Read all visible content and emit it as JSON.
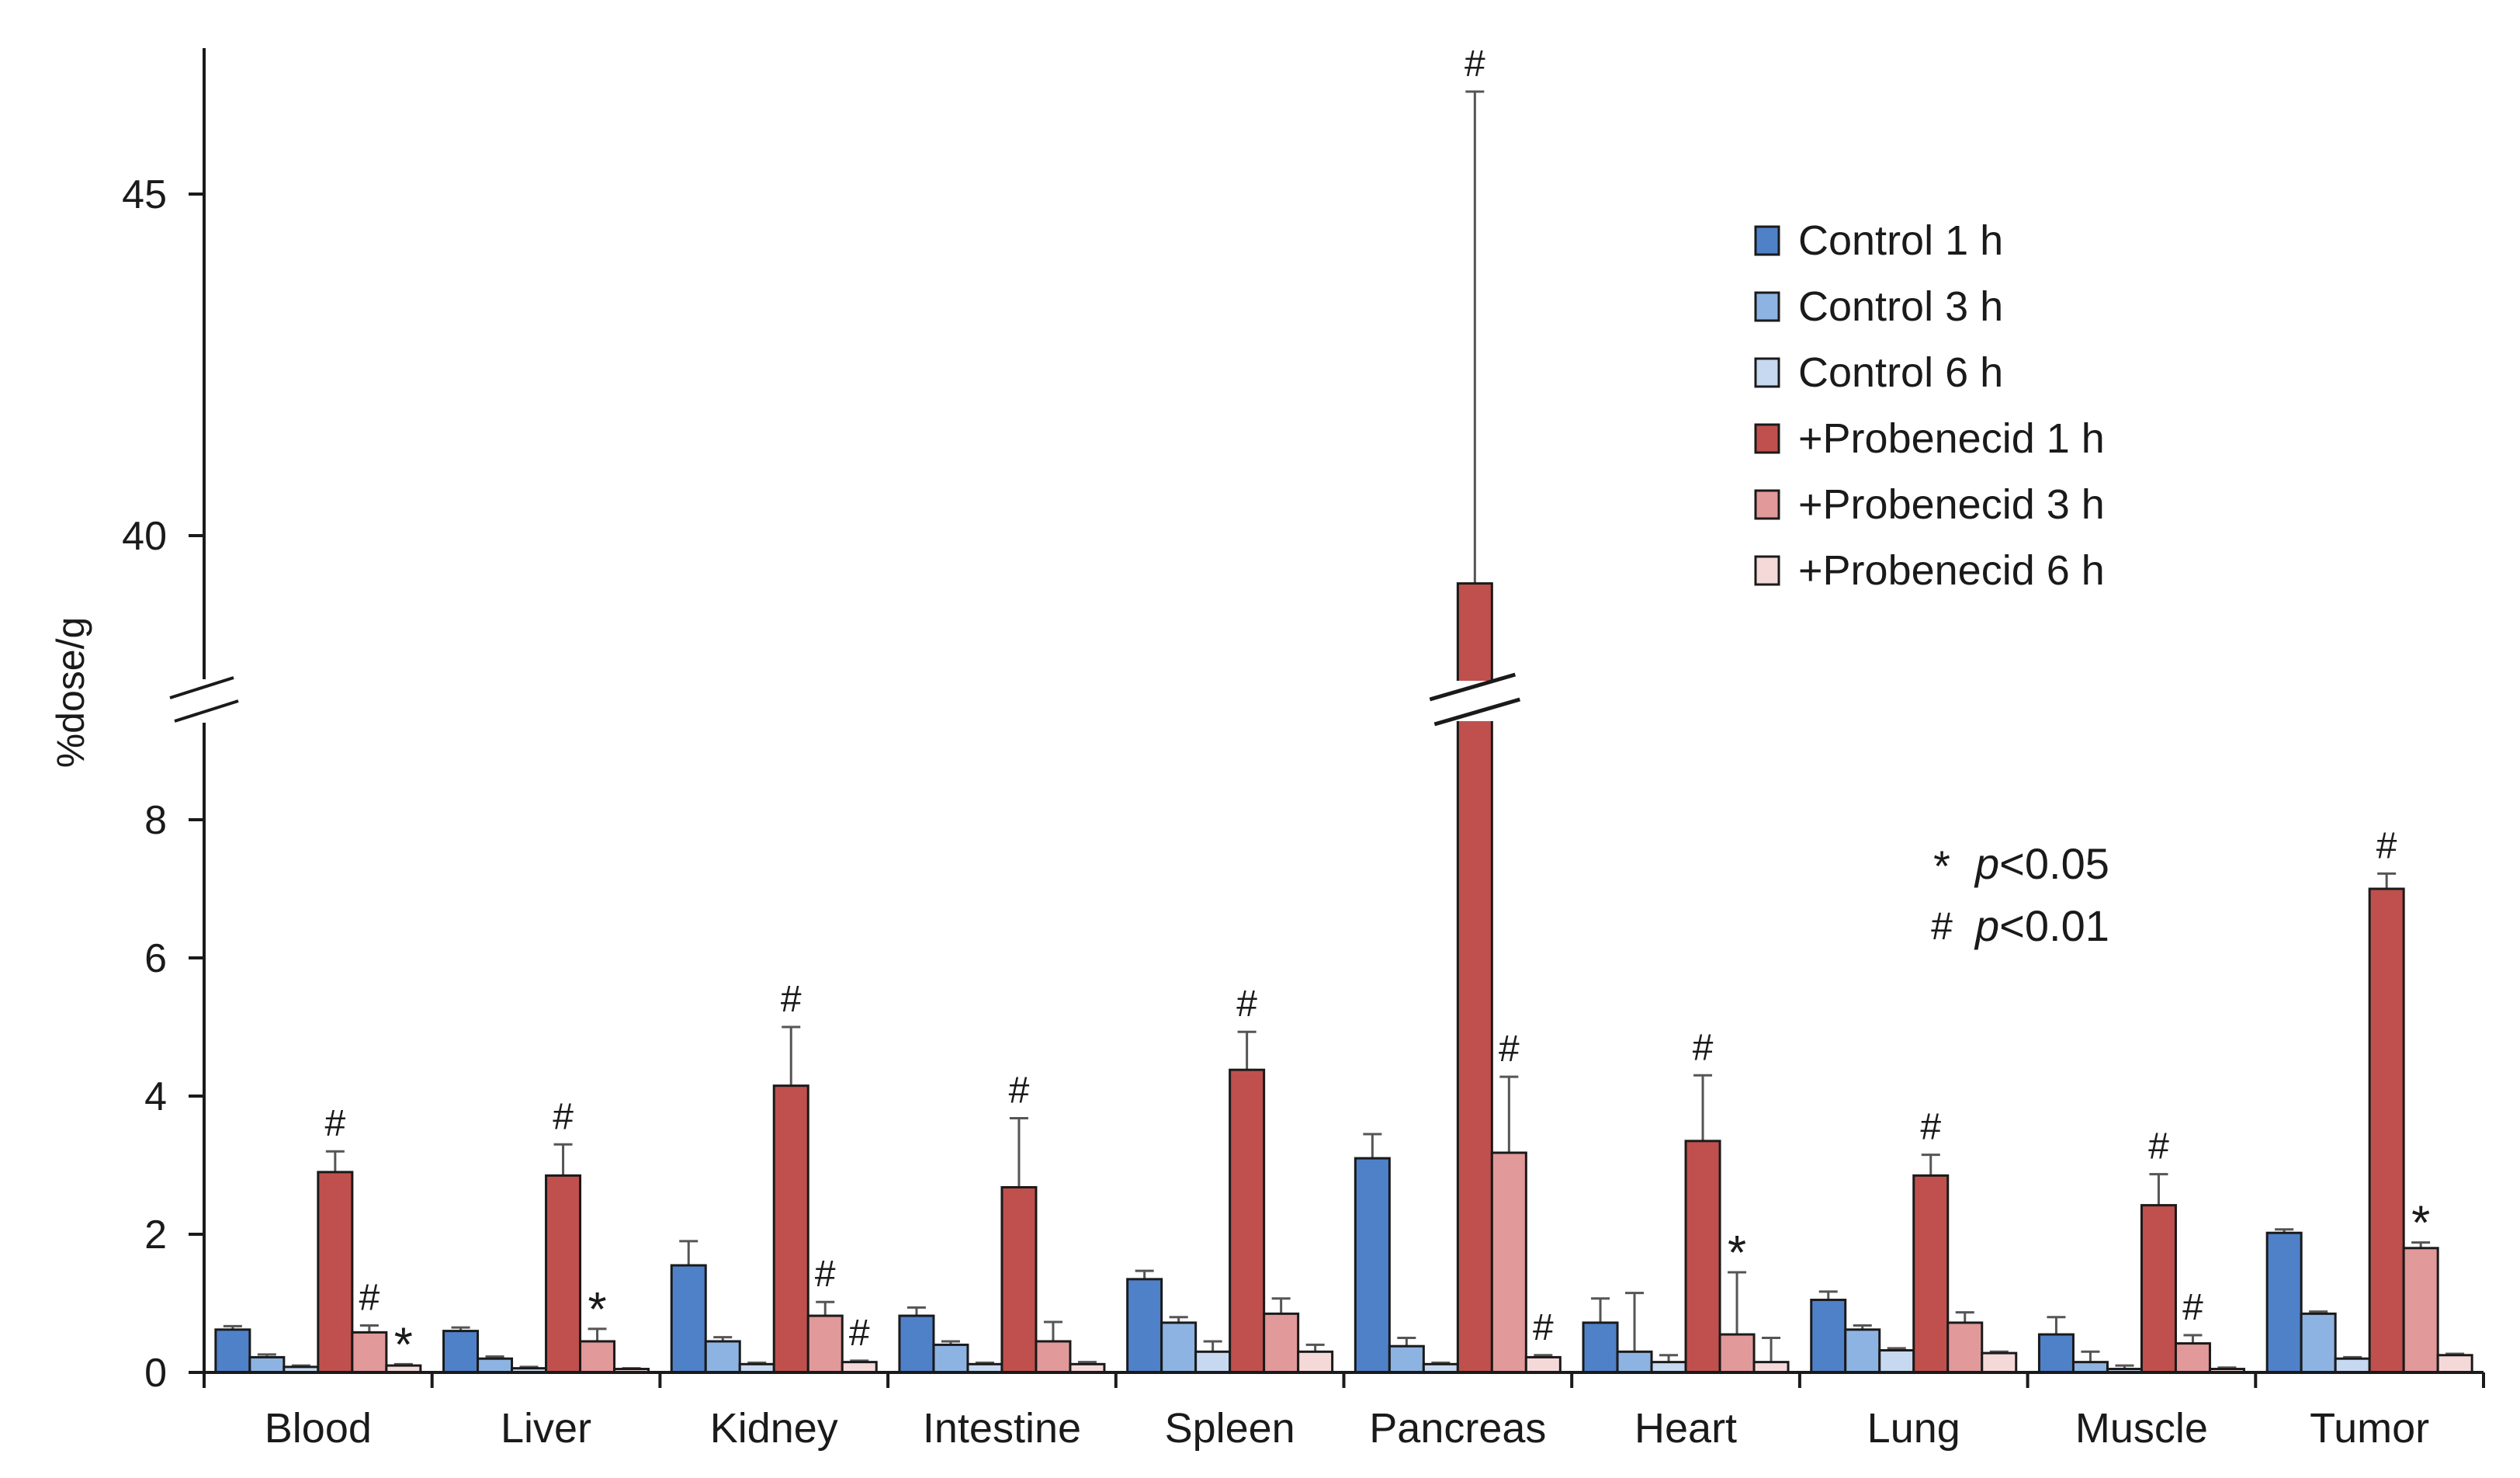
{
  "chart_data": {
    "type": "bar",
    "ylabel": "%dose/g",
    "axis_break": true,
    "lower_range": [
      0,
      9
    ],
    "upper_range": [
      38,
      47
    ],
    "lower_ticks": [
      "0",
      "2",
      "4",
      "6",
      "8"
    ],
    "upper_ticks": [
      "40",
      "45"
    ],
    "categories": [
      "Blood",
      "Liver",
      "Kidney",
      "Intestine",
      "Spleen",
      "Pancreas",
      "Heart",
      "Lung",
      "Muscle",
      "Tumor"
    ],
    "series": [
      {
        "name": "Control 1 h",
        "color": "#4f81c9",
        "values": [
          0.62,
          0.6,
          1.55,
          0.82,
          1.35,
          3.1,
          0.72,
          1.05,
          0.55,
          2.02
        ],
        "errors": [
          0.05,
          0.05,
          0.35,
          0.12,
          0.12,
          0.35,
          0.35,
          0.12,
          0.25,
          0.05
        ]
      },
      {
        "name": "Control 3 h",
        "color": "#8db3e2",
        "values": [
          0.22,
          0.2,
          0.45,
          0.4,
          0.72,
          0.38,
          0.3,
          0.62,
          0.15,
          0.85
        ],
        "errors": [
          0.04,
          0.03,
          0.06,
          0.05,
          0.08,
          0.12,
          0.85,
          0.06,
          0.15,
          0.03
        ]
      },
      {
        "name": "Control 6 h",
        "color": "#c6d9f1",
        "values": [
          0.08,
          0.06,
          0.12,
          0.12,
          0.3,
          0.12,
          0.15,
          0.32,
          0.05,
          0.2
        ],
        "errors": [
          0.02,
          0.02,
          0.02,
          0.02,
          0.15,
          0.02,
          0.1,
          0.03,
          0.05,
          0.02
        ]
      },
      {
        "name": "+Probenecid 1 h",
        "color": "#c0504d",
        "values": [
          2.9,
          2.85,
          4.15,
          2.68,
          4.38,
          39.3,
          3.35,
          2.85,
          2.42,
          7.0
        ],
        "errors": [
          0.3,
          0.45,
          0.85,
          1.0,
          0.55,
          7.2,
          0.95,
          0.3,
          0.45,
          0.22
        ]
      },
      {
        "name": "+Probenecid 3 h",
        "color": "#e2999a",
        "values": [
          0.58,
          0.45,
          0.82,
          0.45,
          0.85,
          3.18,
          0.55,
          0.72,
          0.42,
          1.8
        ],
        "errors": [
          0.1,
          0.18,
          0.2,
          0.28,
          0.22,
          1.1,
          0.9,
          0.15,
          0.12,
          0.08
        ]
      },
      {
        "name": "+Probenecid 6 h",
        "color": "#f5d9d9",
        "values": [
          0.1,
          0.05,
          0.15,
          0.12,
          0.3,
          0.22,
          0.15,
          0.28,
          0.05,
          0.25
        ],
        "errors": [
          0.02,
          0.01,
          0.02,
          0.03,
          0.1,
          0.03,
          0.35,
          0.02,
          0.02,
          0.02
        ]
      }
    ],
    "annotations": [
      {
        "category": 0,
        "series": 3,
        "mark": "#"
      },
      {
        "category": 0,
        "series": 4,
        "mark": "#"
      },
      {
        "category": 0,
        "series": 5,
        "mark": "*"
      },
      {
        "category": 1,
        "series": 3,
        "mark": "#"
      },
      {
        "category": 1,
        "series": 4,
        "mark": "*"
      },
      {
        "category": 2,
        "series": 3,
        "mark": "#"
      },
      {
        "category": 2,
        "series": 4,
        "mark": "#"
      },
      {
        "category": 2,
        "series": 5,
        "mark": "#"
      },
      {
        "category": 3,
        "series": 3,
        "mark": "#"
      },
      {
        "category": 4,
        "series": 3,
        "mark": "#"
      },
      {
        "category": 5,
        "series": 3,
        "mark": "#"
      },
      {
        "category": 5,
        "series": 4,
        "mark": "#"
      },
      {
        "category": 5,
        "series": 5,
        "mark": "#"
      },
      {
        "category": 6,
        "series": 3,
        "mark": "#"
      },
      {
        "category": 6,
        "series": 4,
        "mark": "*"
      },
      {
        "category": 7,
        "series": 3,
        "mark": "#"
      },
      {
        "category": 8,
        "series": 3,
        "mark": "#"
      },
      {
        "category": 8,
        "series": 4,
        "mark": "#"
      },
      {
        "category": 9,
        "series": 3,
        "mark": "#"
      },
      {
        "category": 9,
        "series": 4,
        "mark": "*"
      }
    ],
    "significance_key": [
      {
        "symbol": "*",
        "text": "p",
        "threshold": "<0.05"
      },
      {
        "symbol": "#",
        "text": "p",
        "threshold": "<0.01"
      }
    ]
  }
}
